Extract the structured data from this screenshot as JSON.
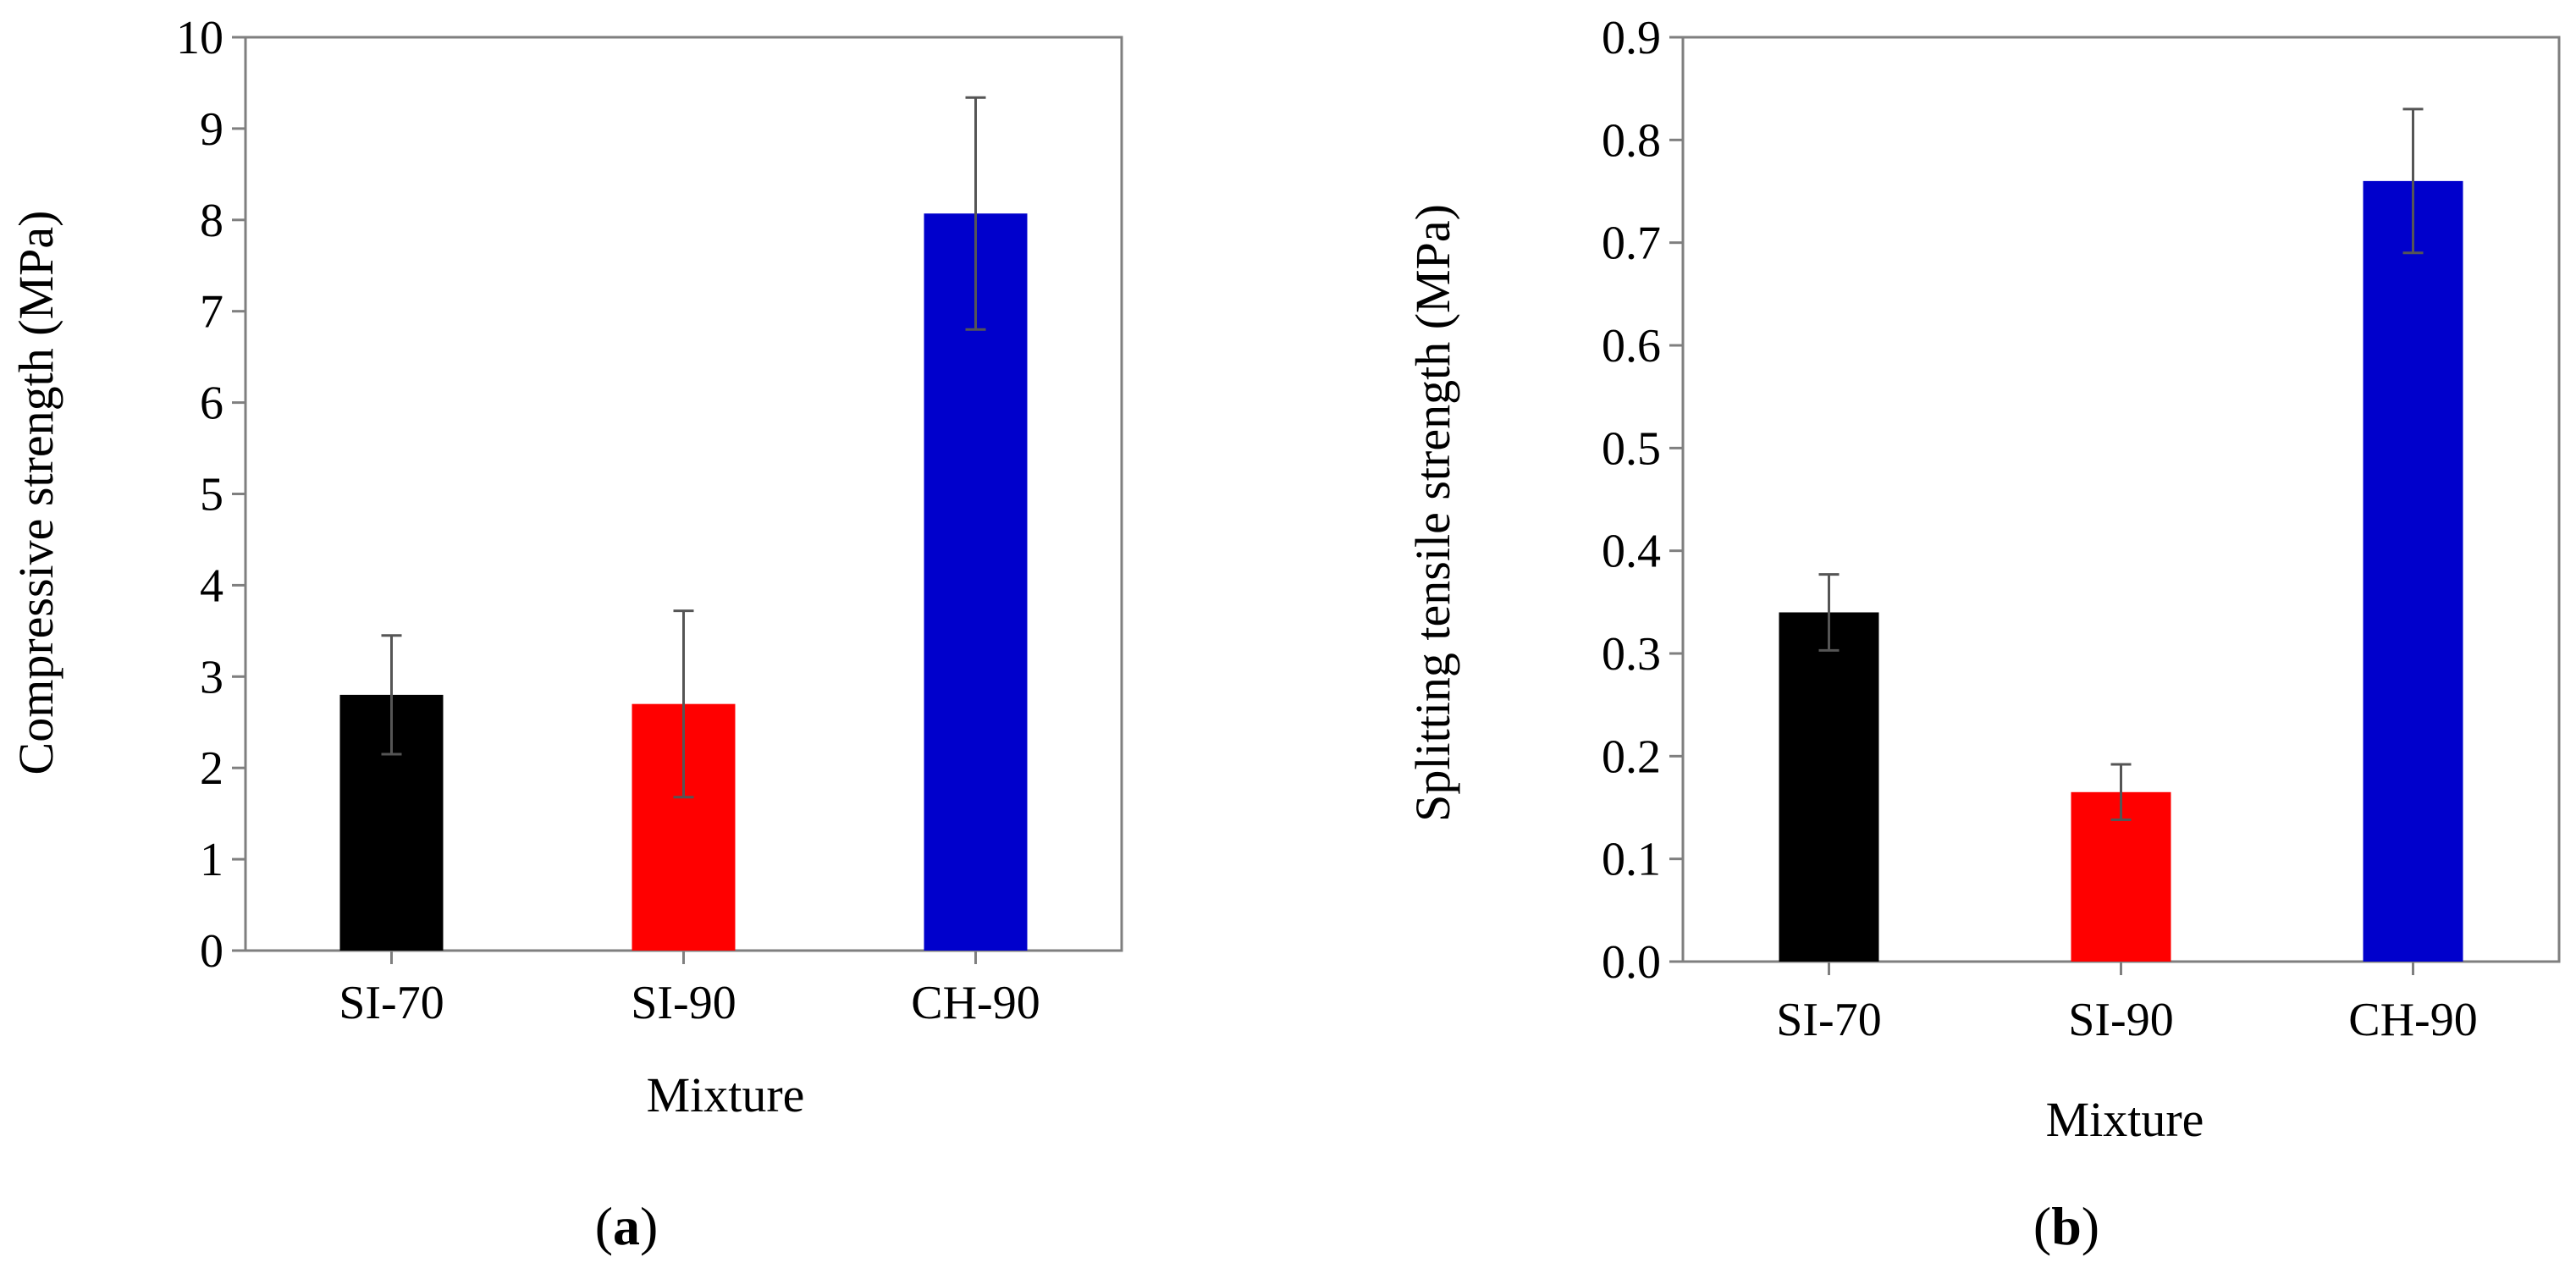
{
  "chart_data": [
    {
      "type": "bar",
      "panel_label": "a",
      "title": "",
      "xlabel": "Mixture",
      "ylabel": "Compressive strength (MPa)",
      "categories": [
        "SI-70",
        "SI-90",
        "CH-90"
      ],
      "values": [
        2.8,
        2.7,
        8.07
      ],
      "error": [
        0.65,
        1.02,
        1.27
      ],
      "colors": [
        "#000000",
        "#ff0000",
        "#0000cc"
      ],
      "ylim": [
        0,
        10
      ],
      "yticks": [
        "0",
        "1",
        "2",
        "3",
        "4",
        "5",
        "6",
        "7",
        "8",
        "9",
        "10"
      ],
      "grid": false
    },
    {
      "type": "bar",
      "panel_label": "b",
      "title": "",
      "xlabel": "Mixture",
      "ylabel": "Splitting tensile strength (MPa)",
      "categories": [
        "SI-70",
        "SI-90",
        "CH-90"
      ],
      "values": [
        0.34,
        0.165,
        0.76
      ],
      "error": [
        0.037,
        0.027,
        0.07
      ],
      "colors": [
        "#000000",
        "#ff0000",
        "#0000cc"
      ],
      "ylim": [
        0,
        0.9
      ],
      "yticks": [
        "0.0",
        "0.1",
        "0.2",
        "0.3",
        "0.4",
        "0.5",
        "0.6",
        "0.7",
        "0.8",
        "0.9"
      ],
      "grid": false
    }
  ]
}
